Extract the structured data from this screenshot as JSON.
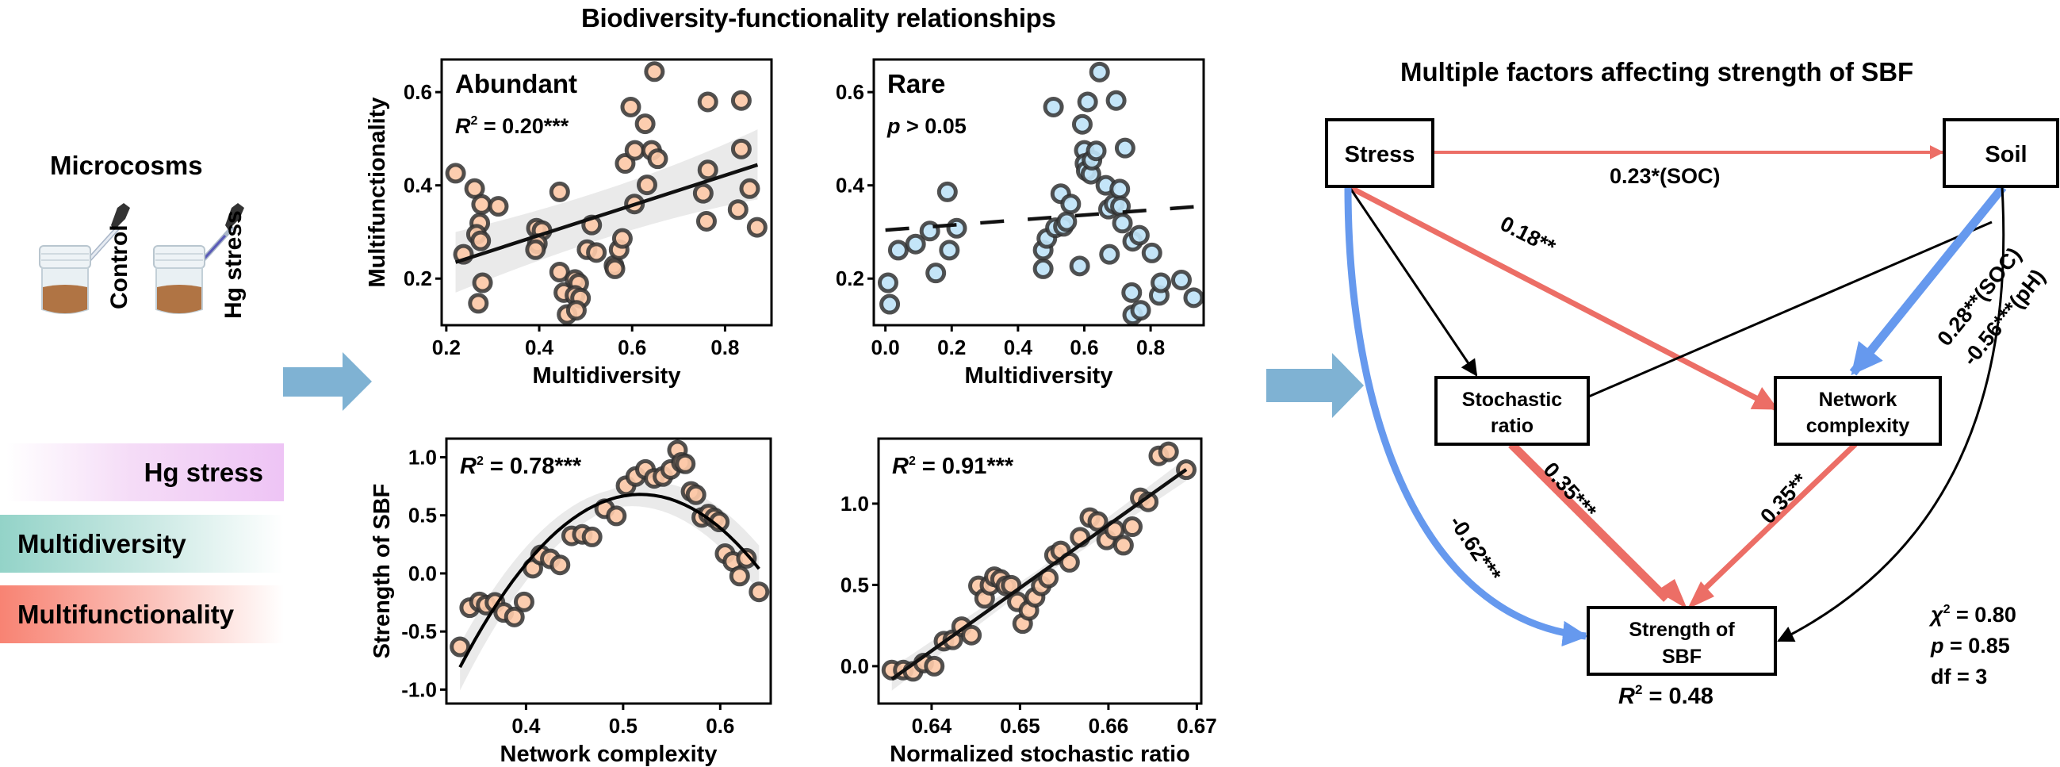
{
  "titles": {
    "main": "Biodiversity-functionality relationships",
    "sem": "Multiple factors affecting strength of SBF",
    "microcosms": "Microcosms"
  },
  "microcosms": {
    "jars": [
      {
        "label": "Control",
        "dropper_color": "#c9d0db"
      },
      {
        "label": "Hg stress",
        "dropper_color": "#5a5ab8"
      }
    ],
    "soil_color": "#b07444"
  },
  "legend_bands": [
    {
      "label": "Hg stress",
      "color": "#eec4f5"
    },
    {
      "label": "Multidiversity",
      "color": "#93d3c8"
    },
    {
      "label": "Multifunctionality",
      "color": "#f88373"
    }
  ],
  "colors": {
    "positive": "#ec6e66",
    "negative": "#6699ee",
    "neutral": "#000000",
    "flow_arrow": "#7fb2d3",
    "abundant_fill": "#fcc9a8",
    "rare_fill": "#bfe3f7",
    "point_stroke": "#333333",
    "ci_band": "#e6e6e6"
  },
  "chart_data": [
    {
      "id": "abundant",
      "type": "scatter",
      "panel_label": "Abundant",
      "stat_prefix": "R",
      "stat_sup": "2",
      "stat_value": " = 0.20***",
      "xlabel": "Multidiversity",
      "ylabel": "Multifunctionality",
      "xlim": [
        0.19,
        0.9
      ],
      "ylim": [
        0.1,
        0.67
      ],
      "xticks": [
        0.2,
        0.4,
        0.6,
        0.8
      ],
      "xtick_labels": [
        "0.2",
        "0.4",
        "0.6",
        "0.8"
      ],
      "yticks": [
        0.2,
        0.4,
        0.6
      ],
      "ytick_labels": [
        "0.2",
        "0.4",
        "0.6"
      ],
      "grid": false,
      "fit": {
        "type": "linear",
        "style": "solid",
        "x": [
          0.22,
          0.87
        ],
        "y": [
          0.235,
          0.444
        ],
        "ci_lower": [
          0.17,
          0.37
        ],
        "ci_upper": [
          0.3,
          0.52
        ]
      },
      "points": [
        [
          0.22,
          0.426
        ],
        [
          0.237,
          0.252
        ],
        [
          0.261,
          0.393
        ],
        [
          0.276,
          0.359
        ],
        [
          0.272,
          0.319
        ],
        [
          0.265,
          0.295
        ],
        [
          0.274,
          0.281
        ],
        [
          0.278,
          0.191
        ],
        [
          0.269,
          0.147
        ],
        [
          0.312,
          0.355
        ],
        [
          0.394,
          0.308
        ],
        [
          0.406,
          0.303
        ],
        [
          0.396,
          0.275
        ],
        [
          0.392,
          0.262
        ],
        [
          0.444,
          0.386
        ],
        [
          0.444,
          0.214
        ],
        [
          0.453,
          0.17
        ],
        [
          0.46,
          0.123
        ],
        [
          0.477,
          0.198
        ],
        [
          0.485,
          0.19
        ],
        [
          0.477,
          0.164
        ],
        [
          0.489,
          0.158
        ],
        [
          0.48,
          0.132
        ],
        [
          0.503,
          0.262
        ],
        [
          0.523,
          0.256
        ],
        [
          0.513,
          0.315
        ],
        [
          0.561,
          0.228
        ],
        [
          0.563,
          0.221
        ],
        [
          0.572,
          0.262
        ],
        [
          0.579,
          0.286
        ],
        [
          0.585,
          0.447
        ],
        [
          0.597,
          0.568
        ],
        [
          0.605,
          0.36
        ],
        [
          0.606,
          0.475
        ],
        [
          0.628,
          0.532
        ],
        [
          0.632,
          0.401
        ],
        [
          0.642,
          0.475
        ],
        [
          0.648,
          0.644
        ],
        [
          0.655,
          0.457
        ],
        [
          0.753,
          0.383
        ],
        [
          0.76,
          0.323
        ],
        [
          0.763,
          0.433
        ],
        [
          0.763,
          0.579
        ],
        [
          0.828,
          0.348
        ],
        [
          0.835,
          0.478
        ],
        [
          0.835,
          0.582
        ],
        [
          0.853,
          0.393
        ],
        [
          0.869,
          0.31
        ]
      ]
    },
    {
      "id": "rare",
      "type": "scatter",
      "panel_label": "Rare",
      "stat_prefix": "p",
      "stat_sup": "",
      "stat_value": " > 0.05",
      "xlabel": "Multidiversity",
      "ylabel": "",
      "xlim": [
        -0.035,
        0.96
      ],
      "ylim": [
        0.1,
        0.67
      ],
      "xticks": [
        0.0,
        0.2,
        0.4,
        0.6,
        0.8
      ],
      "xtick_labels": [
        "0.0",
        "0.2",
        "0.4",
        "0.6",
        "0.8"
      ],
      "yticks": [
        0.2,
        0.4,
        0.6
      ],
      "ytick_labels": [
        "0.2",
        "0.4",
        "0.6"
      ],
      "grid": false,
      "fit": {
        "type": "linear",
        "style": "dashed",
        "x": [
          0.0,
          0.93
        ],
        "y": [
          0.304,
          0.354
        ]
      },
      "points": [
        [
          0.008,
          0.191
        ],
        [
          0.013,
          0.145
        ],
        [
          0.039,
          0.261
        ],
        [
          0.091,
          0.274
        ],
        [
          0.134,
          0.302
        ],
        [
          0.152,
          0.212
        ],
        [
          0.187,
          0.386
        ],
        [
          0.193,
          0.261
        ],
        [
          0.215,
          0.308
        ],
        [
          0.476,
          0.221
        ],
        [
          0.476,
          0.261
        ],
        [
          0.487,
          0.286
        ],
        [
          0.507,
          0.568
        ],
        [
          0.513,
          0.309
        ],
        [
          0.529,
          0.382
        ],
        [
          0.537,
          0.312
        ],
        [
          0.547,
          0.322
        ],
        [
          0.559,
          0.36
        ],
        [
          0.586,
          0.227
        ],
        [
          0.594,
          0.531
        ],
        [
          0.6,
          0.475
        ],
        [
          0.602,
          0.447
        ],
        [
          0.606,
          0.431
        ],
        [
          0.61,
          0.579
        ],
        [
          0.62,
          0.424
        ],
        [
          0.623,
          0.454
        ],
        [
          0.636,
          0.474
        ],
        [
          0.646,
          0.643
        ],
        [
          0.665,
          0.4
        ],
        [
          0.673,
          0.349
        ],
        [
          0.676,
          0.252
        ],
        [
          0.69,
          0.36
        ],
        [
          0.696,
          0.582
        ],
        [
          0.707,
          0.392
        ],
        [
          0.709,
          0.355
        ],
        [
          0.715,
          0.319
        ],
        [
          0.723,
          0.48
        ],
        [
          0.743,
          0.17
        ],
        [
          0.746,
          0.28
        ],
        [
          0.746,
          0.122
        ],
        [
          0.766,
          0.293
        ],
        [
          0.77,
          0.132
        ],
        [
          0.804,
          0.255
        ],
        [
          0.826,
          0.164
        ],
        [
          0.831,
          0.191
        ],
        [
          0.893,
          0.197
        ],
        [
          0.93,
          0.159
        ]
      ]
    },
    {
      "id": "network",
      "type": "scatter",
      "panel_label": "",
      "stat_prefix": "R",
      "stat_sup": "2",
      "stat_value": " = 0.78***",
      "xlabel": "Network complexity",
      "ylabel": "Strength of SBF",
      "xlim": [
        0.318,
        0.652
      ],
      "ylim": [
        -1.12,
        1.16
      ],
      "xticks": [
        0.4,
        0.5,
        0.6
      ],
      "xtick_labels": [
        "0.4",
        "0.5",
        "0.6"
      ],
      "yticks": [
        -1.0,
        -0.5,
        0.0,
        0.5,
        1.0
      ],
      "ytick_labels": [
        "-1.0",
        "-0.5",
        "0.0",
        "0.5",
        "1.0"
      ],
      "grid": false,
      "fit": {
        "type": "quadratic",
        "style": "solid",
        "x_range": [
          0.332,
          0.64
        ],
        "vertex": [
          0.518,
          0.68
        ],
        "curvature": -43.0,
        "ci_halfwidth": [
          0.2,
          0.08,
          0.2
        ]
      },
      "points": [
        [
          0.332,
          -0.632
        ],
        [
          0.342,
          -0.295
        ],
        [
          0.352,
          -0.245
        ],
        [
          0.359,
          -0.273
        ],
        [
          0.368,
          -0.25
        ],
        [
          0.377,
          -0.336
        ],
        [
          0.388,
          -0.375
        ],
        [
          0.398,
          -0.245
        ],
        [
          0.407,
          0.045
        ],
        [
          0.415,
          0.159
        ],
        [
          0.425,
          0.125
        ],
        [
          0.435,
          0.073
        ],
        [
          0.447,
          0.323
        ],
        [
          0.458,
          0.336
        ],
        [
          0.468,
          0.314
        ],
        [
          0.481,
          0.557
        ],
        [
          0.493,
          0.495
        ],
        [
          0.503,
          0.755
        ],
        [
          0.513,
          0.834
        ],
        [
          0.523,
          0.895
        ],
        [
          0.532,
          0.818
        ],
        [
          0.541,
          0.834
        ],
        [
          0.549,
          0.895
        ],
        [
          0.556,
          1.061
        ],
        [
          0.56,
          0.955
        ],
        [
          0.564,
          0.943
        ],
        [
          0.57,
          0.705
        ],
        [
          0.575,
          0.677
        ],
        [
          0.581,
          0.482
        ],
        [
          0.588,
          0.511
        ],
        [
          0.594,
          0.477
        ],
        [
          0.599,
          0.443
        ],
        [
          0.605,
          0.17
        ],
        [
          0.613,
          0.102
        ],
        [
          0.62,
          -0.023
        ],
        [
          0.627,
          0.13
        ],
        [
          0.64,
          -0.159
        ]
      ]
    },
    {
      "id": "stochastic",
      "type": "scatter",
      "panel_label": "",
      "stat_prefix": "R",
      "stat_sup": "2",
      "stat_value": " = 0.91***",
      "xlabel": "Normalized stochastic ratio",
      "ylabel": "",
      "xlim": [
        0.634,
        0.6705
      ],
      "ylim": [
        -0.23,
        1.4
      ],
      "xticks": [
        0.64,
        0.65,
        0.66,
        0.67
      ],
      "xtick_labels": [
        "0.64",
        "0.65",
        "0.66",
        "0.67"
      ],
      "yticks": [
        0.0,
        0.5,
        1.0
      ],
      "ytick_labels": [
        "0.0",
        "0.5",
        "1.0"
      ],
      "grid": false,
      "fit": {
        "type": "linear",
        "style": "solid",
        "x": [
          0.6355,
          0.6688
        ],
        "y": [
          -0.08,
          1.21
        ],
        "ci_halfwidth": [
          0.07,
          0.03,
          0.07
        ]
      },
      "points": [
        [
          0.6355,
          -0.024
        ],
        [
          0.6368,
          -0.024
        ],
        [
          0.6379,
          -0.032
        ],
        [
          0.6391,
          0.019
        ],
        [
          0.6403,
          0.0
        ],
        [
          0.6414,
          0.154
        ],
        [
          0.6424,
          0.162
        ],
        [
          0.6434,
          0.243
        ],
        [
          0.6445,
          0.191
        ],
        [
          0.6453,
          0.494
        ],
        [
          0.646,
          0.417
        ],
        [
          0.6466,
          0.498
        ],
        [
          0.6471,
          0.55
        ],
        [
          0.6478,
          0.534
        ],
        [
          0.6484,
          0.494
        ],
        [
          0.649,
          0.498
        ],
        [
          0.6497,
          0.396
        ],
        [
          0.6503,
          0.262
        ],
        [
          0.651,
          0.343
        ],
        [
          0.6517,
          0.424
        ],
        [
          0.6524,
          0.494
        ],
        [
          0.6532,
          0.542
        ],
        [
          0.6539,
          0.683
        ],
        [
          0.6546,
          0.709
        ],
        [
          0.6556,
          0.639
        ],
        [
          0.6568,
          0.793
        ],
        [
          0.6579,
          0.914
        ],
        [
          0.6588,
          0.89
        ],
        [
          0.6598,
          0.777
        ],
        [
          0.6607,
          0.838
        ],
        [
          0.6617,
          0.744
        ],
        [
          0.6627,
          0.858
        ],
        [
          0.6636,
          1.036
        ],
        [
          0.6645,
          1.011
        ],
        [
          0.6657,
          1.294
        ],
        [
          0.6668,
          1.319
        ],
        [
          0.6688,
          1.209
        ]
      ]
    }
  ],
  "sem": {
    "nodes": {
      "stress": "Stress",
      "soil": "Soil",
      "stochastic_line1": "Stochastic",
      "stochastic_line2": "ratio",
      "network_line1": "Network",
      "network_line2": "complexity",
      "strength_line1": "Strength of",
      "strength_line2": "SBF"
    },
    "paths": [
      {
        "from": "Stress",
        "to": "Soil",
        "sign": "positive",
        "label": "0.23*(SOC)"
      },
      {
        "from": "Stress",
        "to": "Network complexity",
        "sign": "positive",
        "label": "0.18**"
      },
      {
        "from": "Stress",
        "to": "Stochastic ratio",
        "sign": "neutral",
        "label": ""
      },
      {
        "from": "Stress",
        "to": "Strength of SBF",
        "sign": "negative",
        "label": "-0.62***"
      },
      {
        "from": "Soil",
        "to": "Stochastic ratio",
        "sign": "neutral",
        "label": ""
      },
      {
        "from": "Soil",
        "to": "Network complexity",
        "sign": "negative",
        "label_1": "0.28**(SOC)",
        "label_2": "-0.56***(pH)"
      },
      {
        "from": "Soil",
        "to": "Strength of SBF",
        "sign": "neutral",
        "label": ""
      },
      {
        "from": "Stochastic ratio",
        "to": "Strength of SBF",
        "sign": "positive",
        "label": "0.35***"
      },
      {
        "from": "Network complexity",
        "to": "Strength of SBF",
        "sign": "positive",
        "label": "0.35**"
      }
    ],
    "r2_prefix": "R",
    "r2_sup": "2",
    "r2_value": " = 0.48",
    "fit": {
      "chi_sym": "χ",
      "chi_sup": "2",
      "chi_value": " = 0.80",
      "p_sym": "p",
      "p_value": " = 0.85",
      "df": "df = 3"
    }
  }
}
